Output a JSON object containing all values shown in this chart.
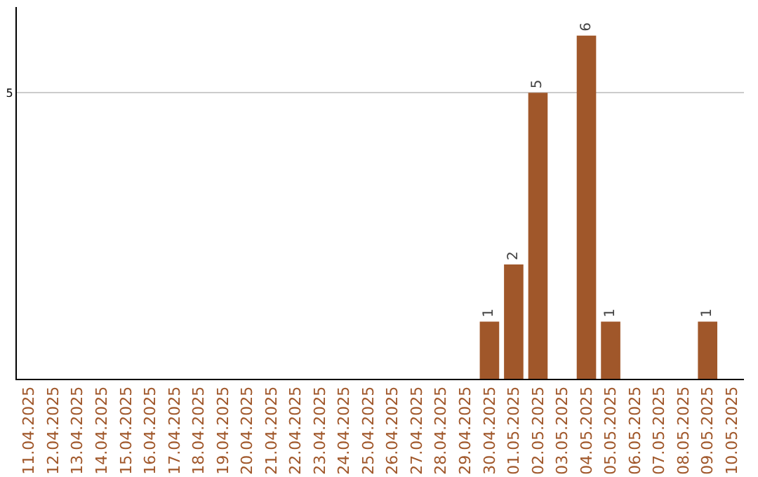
{
  "chart_data": {
    "type": "bar",
    "categories": [
      "11.04.2025",
      "12.04.2025",
      "13.04.2025",
      "14.04.2025",
      "15.04.2025",
      "16.04.2025",
      "17.04.2025",
      "18.04.2025",
      "19.04.2025",
      "20.04.2025",
      "21.04.2025",
      "22.04.2025",
      "23.04.2025",
      "24.04.2025",
      "25.04.2025",
      "26.04.2025",
      "27.04.2025",
      "28.04.2025",
      "29.04.2025",
      "30.04.2025",
      "01.05.2025",
      "02.05.2025",
      "03.05.2025",
      "04.05.2025",
      "05.05.2025",
      "06.05.2025",
      "07.05.2025",
      "08.05.2025",
      "09.05.2025",
      "10.05.2025"
    ],
    "values": [
      null,
      null,
      null,
      null,
      null,
      null,
      null,
      null,
      null,
      null,
      null,
      null,
      null,
      null,
      null,
      null,
      null,
      null,
      null,
      1,
      2,
      5,
      null,
      6,
      1,
      null,
      null,
      null,
      1,
      null
    ],
    "color": "#a0572a",
    "ylim": [
      0,
      6.5
    ],
    "yticks": [
      5
    ],
    "grid": "y",
    "data_labels": true
  }
}
